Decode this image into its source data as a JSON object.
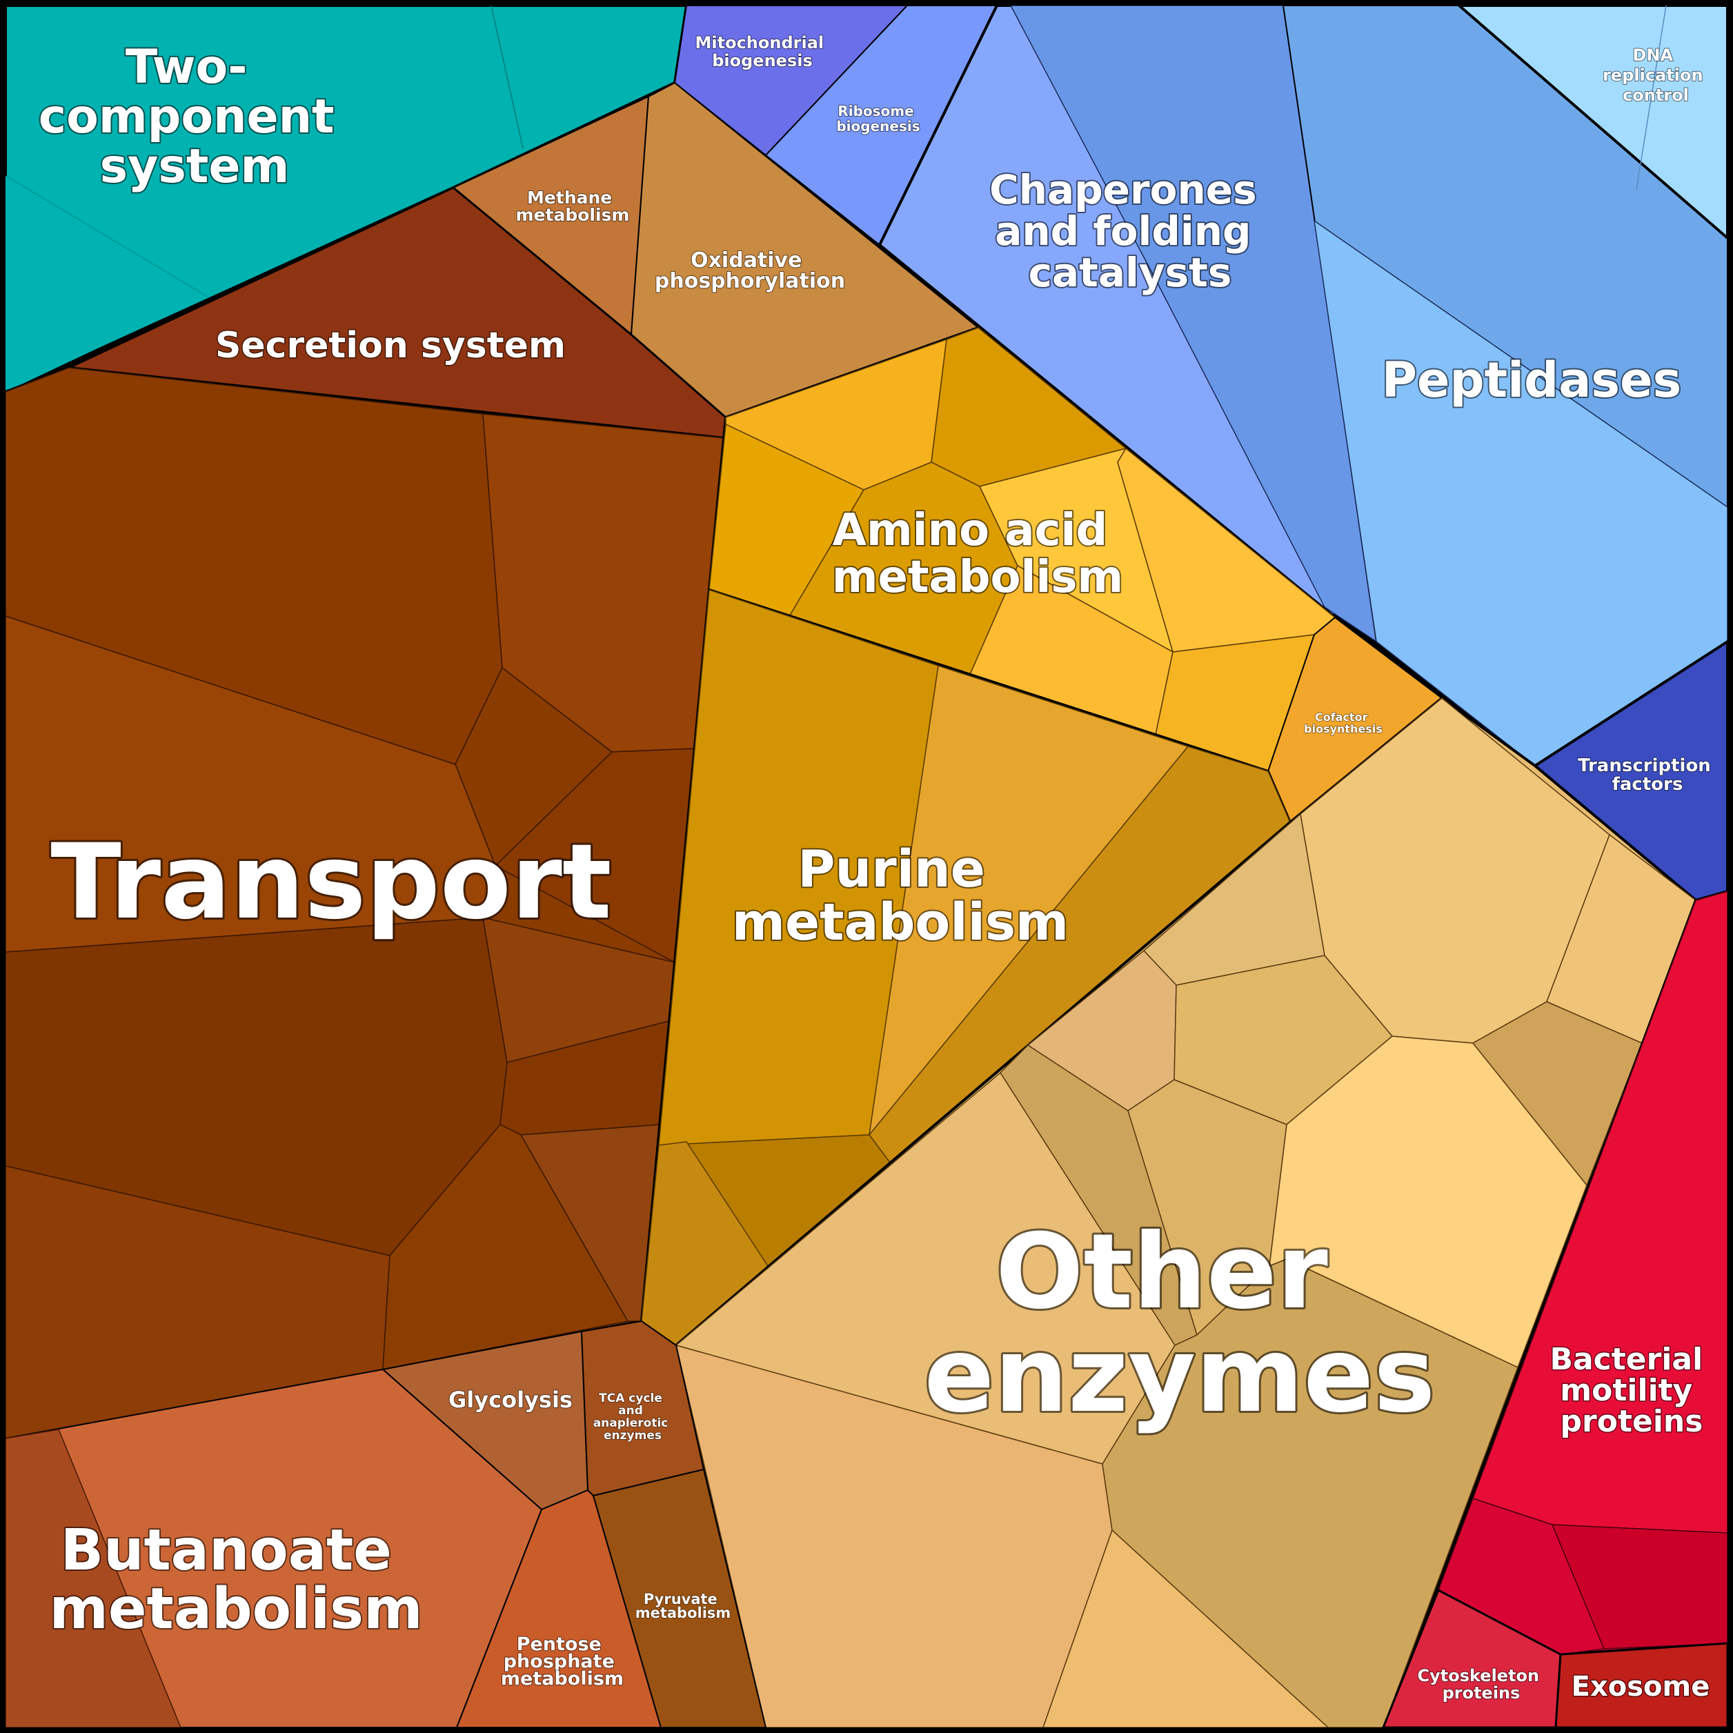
{
  "labels": {
    "two_component": [
      "Two-",
      "component",
      "system"
    ],
    "mitochondrial": [
      "Mitochondrial",
      "biogenesis"
    ],
    "ribosome": [
      "Ribosome",
      "biogenesis"
    ],
    "chaperones": [
      "Chaperones",
      "and folding",
      "catalysts"
    ],
    "dna_replication": [
      "DNA",
      "replication",
      "control"
    ],
    "peptidases": [
      "Peptidases"
    ],
    "methane": [
      "Methane",
      "metabolism"
    ],
    "oxidative": [
      "Oxidative",
      "phosphorylation"
    ],
    "secretion": [
      "Secretion system"
    ],
    "amino_acid": [
      "Amino acid",
      "metabolism"
    ],
    "cofactor": [
      "Cofactor",
      "biosynthesis"
    ],
    "transcription": [
      "Transcription",
      "factors"
    ],
    "transport": [
      "Transport"
    ],
    "purine": [
      "Purine",
      "metabolism"
    ],
    "other_enzymes": [
      "Other",
      "enzymes"
    ],
    "bacterial_motility": [
      "Bacterial",
      "motility",
      "proteins"
    ],
    "glycolysis": [
      "Glycolysis"
    ],
    "tca": [
      "TCA cycle",
      "and",
      "anaplerotic",
      "enzymes"
    ],
    "butanoate": [
      "Butanoate",
      "metabolism"
    ],
    "pentose": [
      "Pentose",
      "phosphate",
      "metabolism"
    ],
    "pyruvate": [
      "Pyruvate",
      "metabolism"
    ],
    "cytoskeleton": [
      "Cytoskeleton",
      "proteins"
    ],
    "exosome": [
      "Exosome"
    ]
  },
  "colors": {
    "two_component": "#00b2b0",
    "mitochondrial": "#6b6fea",
    "ribosome": "#7898fb",
    "chaperones": "#86a8fc",
    "chaperones_dark": "#6897e8",
    "peptidases": "#84c0fa",
    "peptidases_dark": "#6ea8ea",
    "dna_replication": "#a4dcff",
    "transcription": "#3a4cc0",
    "methane": "#c27637",
    "oxidative": "#c98a41",
    "secretion": "#8e3412",
    "transport": "#8a3c00",
    "amino_acid": "#f5b020",
    "cofactor": "#f3a62c",
    "purine": "#d29402",
    "other_enzymes": "#e8bc72",
    "bacterial_motility": "#e80d37",
    "cytoskeleton": "#dc2640",
    "exosome": "#c01f1a",
    "glycolysis": "#b06232",
    "tca": "#a3501c",
    "butanoate": "#cc6637",
    "pentose": "#ca5c2a",
    "pyruvate": "#9a5212"
  }
}
